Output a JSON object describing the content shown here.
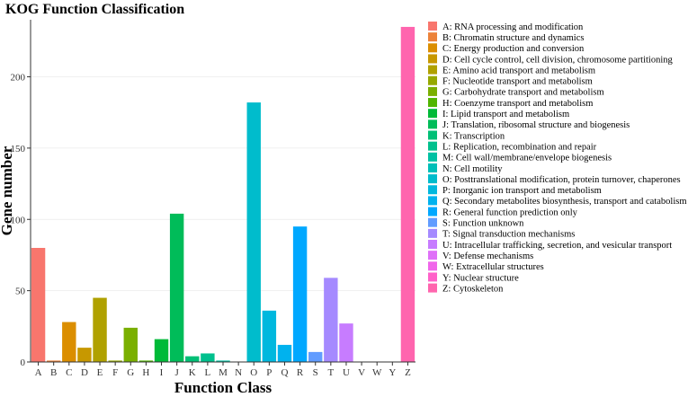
{
  "chart_data": {
    "type": "bar",
    "title": "KOG Function Classification",
    "xlabel": "Function Class",
    "ylabel": "Gene number",
    "ylim": [
      0,
      240
    ],
    "yticks": [
      0,
      50,
      100,
      150,
      200
    ],
    "ytick_labels": [
      "0",
      "50",
      "100",
      "150",
      "200"
    ],
    "legend_position": "right",
    "categories": [
      "A",
      "B",
      "C",
      "D",
      "E",
      "F",
      "G",
      "H",
      "I",
      "J",
      "K",
      "L",
      "M",
      "N",
      "O",
      "P",
      "Q",
      "R",
      "S",
      "T",
      "U",
      "V",
      "W",
      "Y",
      "Z"
    ],
    "values": [
      80,
      1,
      28,
      10,
      45,
      1,
      24,
      1,
      16,
      104,
      4,
      6,
      1,
      0,
      182,
      36,
      12,
      95,
      7,
      59,
      27,
      0,
      0,
      0,
      235
    ],
    "colors": [
      "#F8766D",
      "#EC8239",
      "#DB8E00",
      "#C79800",
      "#B0A100",
      "#96A900",
      "#7AAF00",
      "#51B500",
      "#00BA38",
      "#00BC59",
      "#00BF76",
      "#00C08D",
      "#00C1A3",
      "#00BFB8",
      "#00BCCC",
      "#00B8DE",
      "#00B2EE",
      "#00A8FF",
      "#619CFF",
      "#A58AFF",
      "#C77CFF",
      "#DF70F8",
      "#F066EA",
      "#FF61C9",
      "#FF65AE"
    ],
    "legend": [
      "A: RNA processing and modification",
      "B: Chromatin structure and dynamics",
      "C: Energy production and conversion",
      "D: Cell cycle control, cell division, chromosome partitioning",
      "E: Amino acid transport and metabolism",
      "F: Nucleotide transport and metabolism",
      "G: Carbohydrate transport and metabolism",
      "H: Coenzyme transport and metabolism",
      "I: Lipid transport and metabolism",
      "J: Translation, ribosomal structure and biogenesis",
      "K: Transcription",
      "L: Replication, recombination and repair",
      "M: Cell wall/membrane/envelope biogenesis",
      "N: Cell motility",
      "O: Posttranslational modification, protein turnover, chaperones",
      "P: Inorganic ion transport and metabolism",
      "Q: Secondary metabolites biosynthesis, transport and catabolism",
      "R: General function prediction only",
      "S: Function unknown",
      "T: Signal transduction mechanisms",
      "U: Intracellular trafficking, secretion, and vesicular transport",
      "V: Defense mechanisms",
      "W: Extracellular structures",
      "Y: Nuclear structure",
      "Z: Cytoskeleton"
    ]
  }
}
